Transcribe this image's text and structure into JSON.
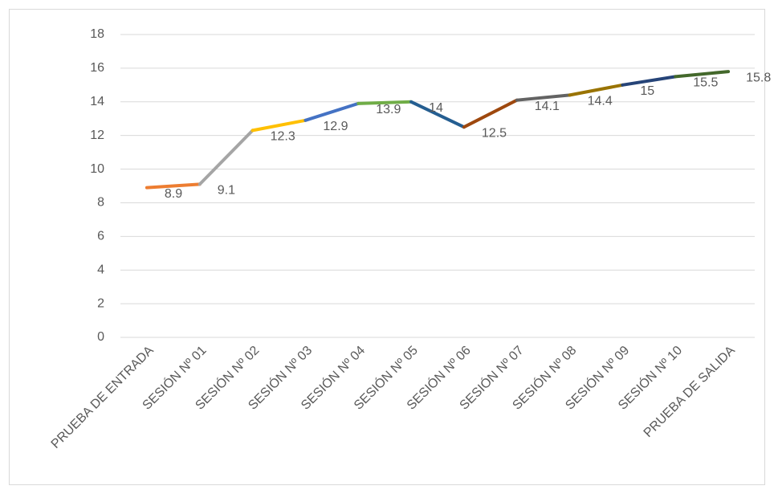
{
  "chart_data": {
    "type": "line",
    "categories": [
      "PRUEBA DE ENTRADA",
      "SESIÓN Nº 01",
      "SESIÓN Nº 02",
      "SESIÓN Nº 03",
      "SESIÓN Nº 04",
      "SESIÓN Nº 05",
      "SESIÓN Nº 06",
      "SESIÓN Nº 07",
      "SESIÓN Nº 08",
      "SESIÓN Nº 09",
      "SESIÓN Nº 10",
      "PRUEBA DE SALIDA"
    ],
    "values": [
      8.9,
      9.1,
      12.3,
      12.9,
      13.9,
      14,
      12.5,
      14.1,
      14.4,
      15,
      15.5,
      15.8
    ],
    "segment_colors": [
      "#ED7D31",
      "#A5A5A5",
      "#FFC000",
      "#4472C4",
      "#70AD47",
      "#255E91",
      "#9E480E",
      "#636363",
      "#997300",
      "#264478",
      "#43682B"
    ],
    "ylim": [
      0,
      18
    ],
    "yticks": [
      0,
      2,
      4,
      6,
      8,
      10,
      12,
      14,
      16,
      18
    ],
    "grid": true
  }
}
